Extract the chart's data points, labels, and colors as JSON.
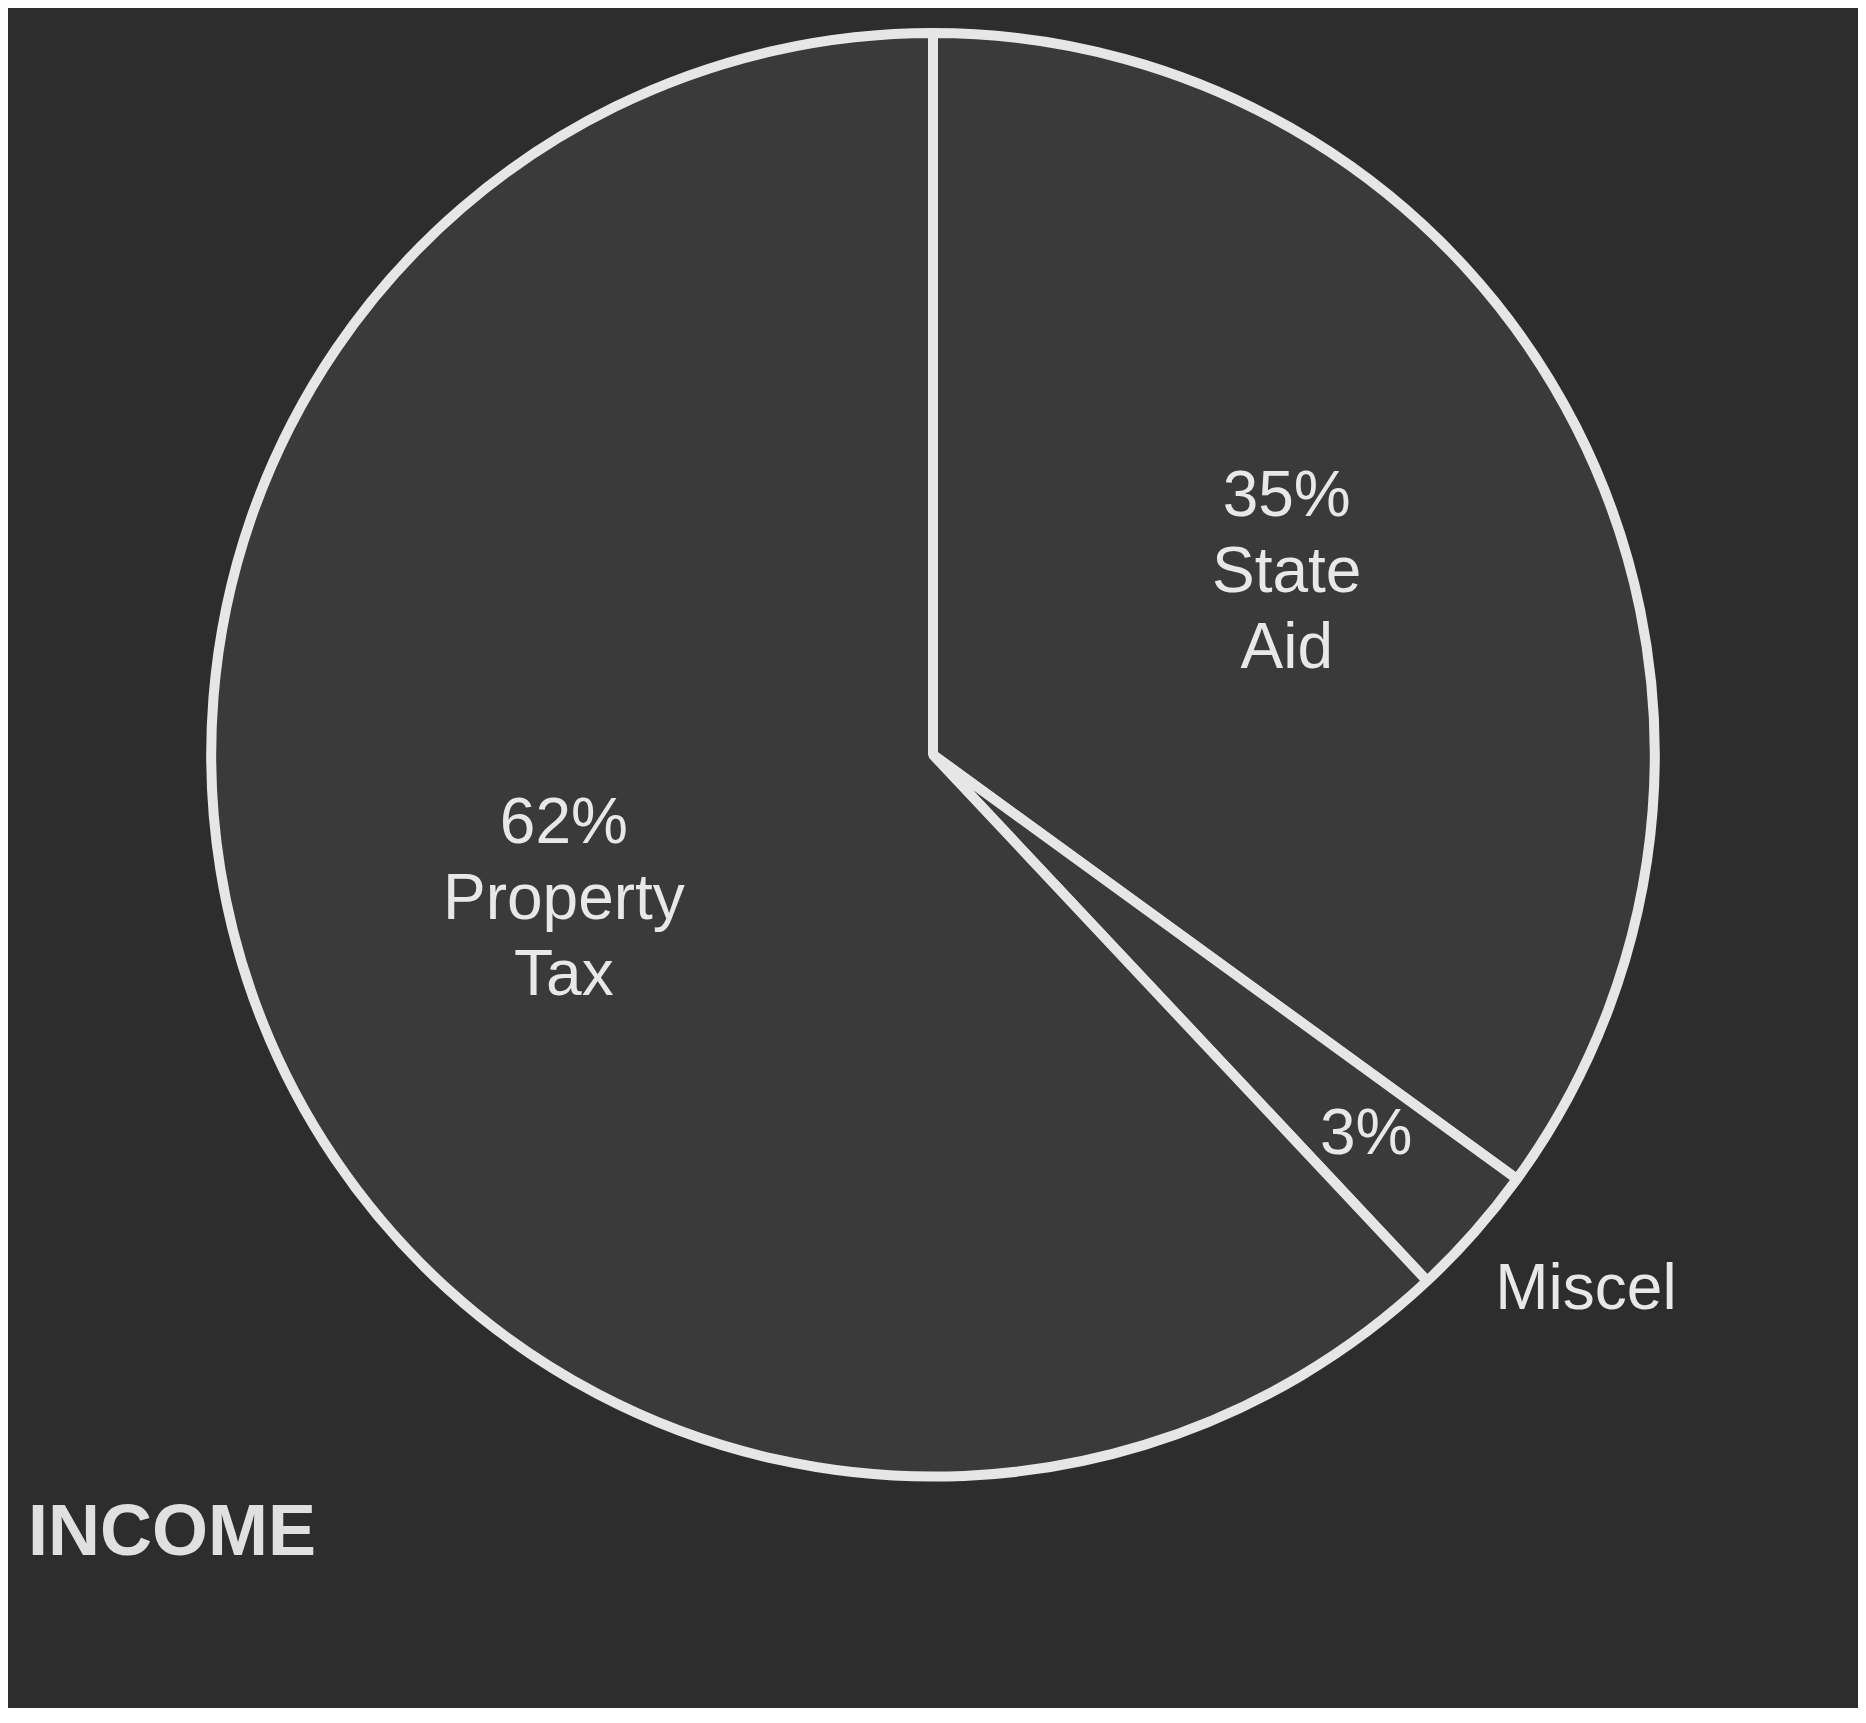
{
  "chart_data": {
    "type": "pie",
    "title": "INCOME",
    "categories": [
      "State Aid",
      "Miscel",
      "Property Tax"
    ],
    "values": [
      35,
      3,
      62
    ],
    "value_labels": [
      "35%",
      "3%",
      "62%"
    ],
    "colors": [
      "#3b3a3a",
      "#3b3a3a",
      "#3b3a3a"
    ],
    "legend": false
  }
}
